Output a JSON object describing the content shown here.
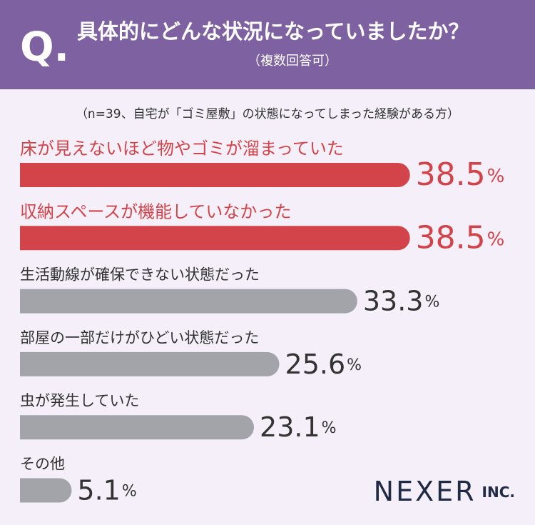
{
  "chart_data": {
    "type": "hbar",
    "header_mark": "Q.",
    "title": "具体的にどんな状況になっていましたか？",
    "subtitle": "（複数回答可）",
    "note": "（n=39、自宅が「ゴミ屋敷」の状態になってしまった経験がある方）",
    "categories": [
      "床が見えないほど物やゴミが溜まっていた",
      "収納スペースが機能していなかった",
      "生活動線が確保できない状態だった",
      "部屋の一部だけがひどい状態だった",
      "虫が発生していた",
      "その他"
    ],
    "values": [
      38.5,
      38.5,
      33.3,
      25.6,
      23.1,
      5.1
    ],
    "unit": "%",
    "colors": [
      "#d3444a",
      "#d3444a",
      "#a3a3aa",
      "#a3a3aa",
      "#a3a3aa",
      "#a3a3aa"
    ],
    "xlim": [
      0,
      40
    ],
    "logo": "NEXER",
    "logo_suffix": "INC."
  }
}
